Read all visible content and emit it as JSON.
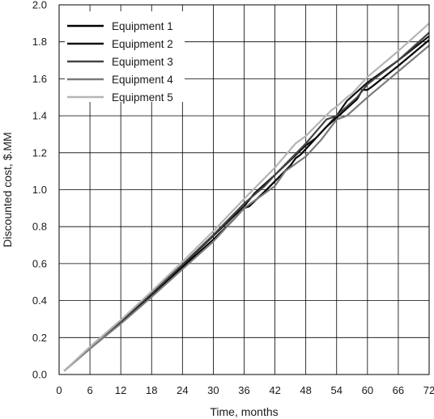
{
  "chart_data": {
    "type": "line",
    "title": "",
    "xlabel": "Time, months",
    "ylabel": "Discounted cost, $.MM",
    "xlim": [
      0,
      72
    ],
    "ylim": [
      0,
      2.0
    ],
    "xticks": [
      "0",
      "6",
      "12",
      "18",
      "24",
      "30",
      "36",
      "42",
      "48",
      "54",
      "60",
      "66",
      "72"
    ],
    "yticks": [
      "0.0",
      "0.2",
      "0.4",
      "0.6",
      "0.8",
      "1.0",
      "1.2",
      "1.4",
      "1.6",
      "1.8",
      "2.0"
    ],
    "grid": true,
    "legend_position": "top-left",
    "series": [
      {
        "name": "Equipment 1",
        "color": "#000000",
        "x": [
          1,
          6,
          12,
          18,
          24,
          30,
          34,
          36,
          37,
          40,
          45,
          46,
          47,
          52,
          54,
          58,
          59,
          60,
          61,
          66,
          72
        ],
        "y": [
          0.02,
          0.14,
          0.28,
          0.43,
          0.58,
          0.73,
          0.84,
          0.9,
          0.91,
          0.99,
          1.13,
          1.17,
          1.19,
          1.34,
          1.39,
          1.49,
          1.54,
          1.54,
          1.56,
          1.67,
          1.81
        ]
      },
      {
        "name": "Equipment 2",
        "color": "#111111",
        "x": [
          1,
          6,
          12,
          18,
          24,
          30,
          36,
          38,
          42,
          48,
          50,
          54,
          56,
          60,
          66,
          72
        ],
        "y": [
          0.02,
          0.145,
          0.285,
          0.435,
          0.59,
          0.75,
          0.91,
          0.98,
          1.08,
          1.24,
          1.28,
          1.4,
          1.48,
          1.58,
          1.7,
          1.83
        ]
      },
      {
        "name": "Equipment 3",
        "color": "#444444",
        "x": [
          1,
          6,
          12,
          18,
          24,
          30,
          36,
          40,
          42,
          48,
          52,
          54,
          58,
          60,
          66,
          72
        ],
        "y": [
          0.02,
          0.145,
          0.29,
          0.44,
          0.595,
          0.755,
          0.925,
          1.02,
          1.08,
          1.25,
          1.38,
          1.4,
          1.5,
          1.57,
          1.7,
          1.85
        ]
      },
      {
        "name": "Equipment 4",
        "color": "#7a7a7a",
        "x": [
          1,
          6,
          12,
          18,
          24,
          30,
          35,
          36,
          37,
          42,
          44,
          48,
          51,
          54,
          56,
          60,
          66,
          72
        ],
        "y": [
          0.02,
          0.14,
          0.275,
          0.42,
          0.57,
          0.72,
          0.87,
          0.9,
          0.92,
          1.02,
          1.1,
          1.18,
          1.27,
          1.38,
          1.4,
          1.5,
          1.64,
          1.78
        ]
      },
      {
        "name": "Equipment 5",
        "color": "#b5b5b5",
        "x": [
          1,
          6,
          12,
          18,
          24,
          30,
          36,
          42,
          46,
          48,
          53,
          54,
          56,
          57,
          60,
          66,
          72
        ],
        "y": [
          0.02,
          0.15,
          0.295,
          0.45,
          0.61,
          0.775,
          0.95,
          1.12,
          1.25,
          1.29,
          1.43,
          1.45,
          1.5,
          1.52,
          1.61,
          1.75,
          1.9
        ]
      }
    ]
  }
}
